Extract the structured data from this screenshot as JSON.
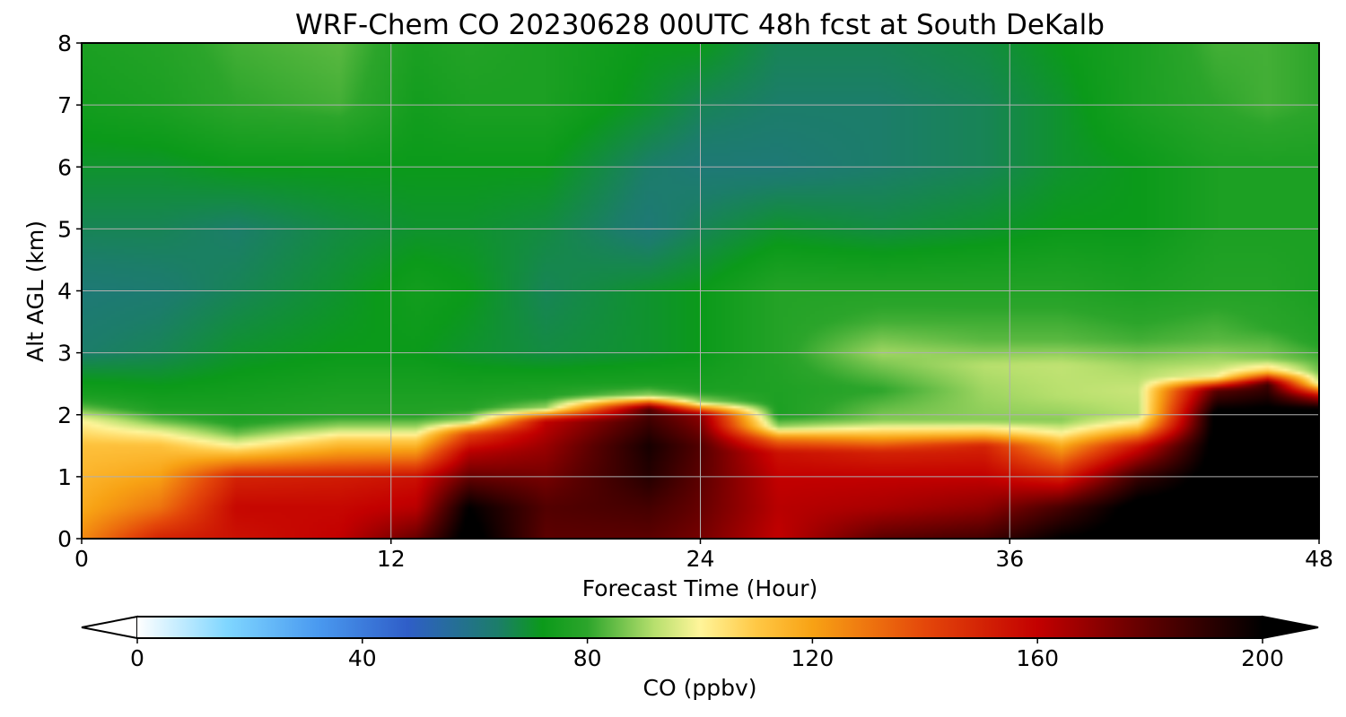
{
  "chart_data": {
    "type": "heatmap",
    "title": "WRF-Chem CO  20230628 00UTC 48h fcst at South DeKalb",
    "xlabel": "Forecast Time (Hour)",
    "ylabel": "Alt AGL (km)",
    "xlim": [
      0,
      48
    ],
    "ylim": [
      0,
      8
    ],
    "xticks": [
      "0",
      "12",
      "24",
      "36",
      "48"
    ],
    "yticks": [
      "0",
      "1",
      "2",
      "3",
      "4",
      "5",
      "6",
      "7",
      "8"
    ],
    "grid": true,
    "colorbar": {
      "label": "CO  (ppbv)",
      "range": [
        0,
        200
      ],
      "ticks": [
        "0",
        "40",
        "80",
        "120",
        "160",
        "200"
      ],
      "extend": "both",
      "orientation": "horizontal",
      "placement": "bottom",
      "stops": [
        {
          "value": 0,
          "color": "#ffffff"
        },
        {
          "value": 16,
          "color": "#7fd6ff"
        },
        {
          "value": 32,
          "color": "#4a9af0"
        },
        {
          "value": 48,
          "color": "#2f5ec8"
        },
        {
          "value": 64,
          "color": "#1c7d6a"
        },
        {
          "value": 72,
          "color": "#0b9a1a"
        },
        {
          "value": 80,
          "color": "#2ca52b"
        },
        {
          "value": 92,
          "color": "#b8e06e"
        },
        {
          "value": 100,
          "color": "#fff59a"
        },
        {
          "value": 110,
          "color": "#ffc845"
        },
        {
          "value": 120,
          "color": "#f8a214"
        },
        {
          "value": 140,
          "color": "#e4470a"
        },
        {
          "value": 160,
          "color": "#c30000"
        },
        {
          "value": 180,
          "color": "#5c0000"
        },
        {
          "value": 200,
          "color": "#000000"
        }
      ]
    },
    "profile_columns": [
      {
        "x": 0,
        "points": [
          [
            0,
            125
          ],
          [
            0.5,
            118
          ],
          [
            1.0,
            115
          ],
          [
            1.5,
            112
          ],
          [
            1.9,
            100
          ],
          [
            2.1,
            85
          ],
          [
            2.3,
            76
          ],
          [
            3.0,
            64
          ],
          [
            4.0,
            62
          ],
          [
            5.0,
            66
          ],
          [
            6.0,
            70
          ],
          [
            7.0,
            74
          ],
          [
            8.0,
            76
          ]
        ]
      },
      {
        "x": 3,
        "points": [
          [
            0,
            150
          ],
          [
            0.5,
            130
          ],
          [
            1.0,
            120
          ],
          [
            1.5,
            112
          ],
          [
            1.7,
            100
          ],
          [
            1.9,
            85
          ],
          [
            2.1,
            76
          ],
          [
            3.0,
            66
          ],
          [
            4.0,
            63
          ],
          [
            5.0,
            66
          ],
          [
            6.0,
            70
          ],
          [
            7.0,
            76
          ],
          [
            8.0,
            78
          ]
        ]
      },
      {
        "x": 6,
        "points": [
          [
            0,
            155
          ],
          [
            0.5,
            158
          ],
          [
            1.0,
            150
          ],
          [
            1.3,
            120
          ],
          [
            1.5,
            100
          ],
          [
            1.7,
            85
          ],
          [
            1.9,
            77
          ],
          [
            3.0,
            70
          ],
          [
            4.0,
            66
          ],
          [
            5.0,
            64
          ],
          [
            6.0,
            72
          ],
          [
            7.0,
            80
          ],
          [
            8.0,
            82
          ]
        ]
      },
      {
        "x": 10,
        "points": [
          [
            0,
            160
          ],
          [
            0.5,
            158
          ],
          [
            1.0,
            152
          ],
          [
            1.3,
            128
          ],
          [
            1.6,
            108
          ],
          [
            1.8,
            90
          ],
          [
            2.0,
            78
          ],
          [
            3.0,
            72
          ],
          [
            4.0,
            70
          ],
          [
            5.0,
            68
          ],
          [
            6.0,
            72
          ],
          [
            7.0,
            82
          ],
          [
            8.0,
            84
          ]
        ]
      },
      {
        "x": 13,
        "points": [
          [
            0,
            178
          ],
          [
            0.5,
            162
          ],
          [
            1.0,
            155
          ],
          [
            1.3,
            130
          ],
          [
            1.6,
            108
          ],
          [
            1.8,
            90
          ],
          [
            2.0,
            78
          ],
          [
            3.0,
            72
          ],
          [
            4.0,
            74
          ],
          [
            5.0,
            70
          ],
          [
            6.0,
            72
          ],
          [
            7.0,
            74
          ],
          [
            8.0,
            76
          ]
        ]
      },
      {
        "x": 15,
        "points": [
          [
            0,
            205
          ],
          [
            0.5,
            200
          ],
          [
            1.0,
            178
          ],
          [
            1.4,
            162
          ],
          [
            1.7,
            140
          ],
          [
            1.9,
            90
          ],
          [
            2.1,
            78
          ],
          [
            3.0,
            70
          ],
          [
            4.0,
            72
          ],
          [
            5.0,
            70
          ],
          [
            6.0,
            72
          ],
          [
            7.0,
            76
          ],
          [
            8.0,
            78
          ]
        ]
      },
      {
        "x": 18,
        "points": [
          [
            0,
            180
          ],
          [
            0.5,
            182
          ],
          [
            1.0,
            175
          ],
          [
            1.5,
            168
          ],
          [
            1.9,
            160
          ],
          [
            2.1,
            90
          ],
          [
            2.3,
            78
          ],
          [
            3.0,
            68
          ],
          [
            4.0,
            66
          ],
          [
            5.0,
            68
          ],
          [
            6.0,
            72
          ],
          [
            7.0,
            76
          ],
          [
            8.0,
            76
          ]
        ]
      },
      {
        "x": 22,
        "points": [
          [
            0,
            180
          ],
          [
            0.5,
            185
          ],
          [
            1.0,
            192
          ],
          [
            1.5,
            195
          ],
          [
            2.1,
            182
          ],
          [
            2.3,
            90
          ],
          [
            2.5,
            76
          ],
          [
            3.0,
            70
          ],
          [
            4.0,
            70
          ],
          [
            5.0,
            62
          ],
          [
            6.0,
            64
          ],
          [
            7.0,
            70
          ],
          [
            8.0,
            72
          ]
        ]
      },
      {
        "x": 24,
        "points": [
          [
            0,
            175
          ],
          [
            0.5,
            178
          ],
          [
            1.0,
            180
          ],
          [
            1.5,
            182
          ],
          [
            2.0,
            170
          ],
          [
            2.2,
            90
          ],
          [
            2.4,
            76
          ],
          [
            3.0,
            72
          ],
          [
            4.0,
            72
          ],
          [
            5.0,
            66
          ],
          [
            6.0,
            62
          ],
          [
            7.0,
            66
          ],
          [
            8.0,
            72
          ]
        ]
      },
      {
        "x": 27,
        "points": [
          [
            0,
            160
          ],
          [
            0.5,
            162
          ],
          [
            1.0,
            160
          ],
          [
            1.4,
            155
          ],
          [
            1.6,
            130
          ],
          [
            1.8,
            90
          ],
          [
            2.0,
            76
          ],
          [
            3.0,
            78
          ],
          [
            4.0,
            78
          ],
          [
            5.0,
            70
          ],
          [
            6.0,
            62
          ],
          [
            7.0,
            64
          ],
          [
            8.0,
            66
          ]
        ]
      },
      {
        "x": 31,
        "points": [
          [
            0,
            180
          ],
          [
            0.5,
            165
          ],
          [
            1.0,
            160
          ],
          [
            1.4,
            150
          ],
          [
            1.7,
            110
          ],
          [
            1.9,
            88
          ],
          [
            2.4,
            80
          ],
          [
            3.0,
            90
          ],
          [
            3.5,
            82
          ],
          [
            4.0,
            78
          ],
          [
            5.0,
            68
          ],
          [
            6.0,
            64
          ],
          [
            7.0,
            64
          ],
          [
            8.0,
            66
          ]
        ]
      },
      {
        "x": 35,
        "points": [
          [
            0,
            185
          ],
          [
            0.5,
            170
          ],
          [
            1.0,
            160
          ],
          [
            1.5,
            150
          ],
          [
            1.7,
            112
          ],
          [
            1.9,
            88
          ],
          [
            2.4,
            90
          ],
          [
            2.8,
            92
          ],
          [
            3.2,
            84
          ],
          [
            4.0,
            78
          ],
          [
            5.0,
            70
          ],
          [
            6.0,
            66
          ],
          [
            7.0,
            66
          ],
          [
            8.0,
            68
          ]
        ]
      },
      {
        "x": 38,
        "points": [
          [
            0,
            200
          ],
          [
            0.5,
            185
          ],
          [
            1.0,
            150
          ],
          [
            1.5,
            118
          ],
          [
            1.7,
            100
          ],
          [
            1.9,
            88
          ],
          [
            2.3,
            92
          ],
          [
            2.8,
            93
          ],
          [
            3.2,
            84
          ],
          [
            4.0,
            78
          ],
          [
            5.0,
            72
          ],
          [
            6.0,
            70
          ],
          [
            7.0,
            70
          ],
          [
            8.0,
            72
          ]
        ]
      },
      {
        "x": 41,
        "points": [
          [
            0,
            205
          ],
          [
            0.5,
            205
          ],
          [
            1.0,
            188
          ],
          [
            1.5,
            155
          ],
          [
            1.8,
            110
          ],
          [
            2.0,
            92
          ],
          [
            2.4,
            94
          ],
          [
            2.8,
            90
          ],
          [
            3.2,
            82
          ],
          [
            4.0,
            76
          ],
          [
            5.0,
            72
          ],
          [
            6.0,
            72
          ],
          [
            7.0,
            76
          ],
          [
            8.0,
            76
          ]
        ]
      },
      {
        "x": 44,
        "points": [
          [
            0,
            205
          ],
          [
            1.0,
            205
          ],
          [
            2.0,
            205
          ],
          [
            2.4,
            180
          ],
          [
            2.6,
            100
          ],
          [
            2.8,
            92
          ],
          [
            3.2,
            84
          ],
          [
            4.0,
            78
          ],
          [
            5.0,
            76
          ],
          [
            6.0,
            76
          ],
          [
            7.0,
            80
          ],
          [
            8.0,
            82
          ]
        ]
      },
      {
        "x": 46,
        "points": [
          [
            0,
            205
          ],
          [
            1.0,
            205
          ],
          [
            2.0,
            205
          ],
          [
            2.5,
            185
          ],
          [
            2.7,
            110
          ],
          [
            2.9,
            88
          ],
          [
            3.4,
            80
          ],
          [
            4.0,
            78
          ],
          [
            5.0,
            76
          ],
          [
            6.0,
            76
          ],
          [
            7.0,
            82
          ],
          [
            8.0,
            82
          ]
        ]
      },
      {
        "x": 48,
        "points": [
          [
            0,
            205
          ],
          [
            1.0,
            205
          ],
          [
            2.1,
            200
          ],
          [
            2.3,
            160
          ],
          [
            2.5,
            96
          ],
          [
            2.7,
            86
          ],
          [
            3.2,
            78
          ],
          [
            4.0,
            76
          ],
          [
            5.0,
            76
          ],
          [
            6.0,
            76
          ],
          [
            7.0,
            80
          ],
          [
            8.0,
            80
          ]
        ]
      }
    ]
  }
}
